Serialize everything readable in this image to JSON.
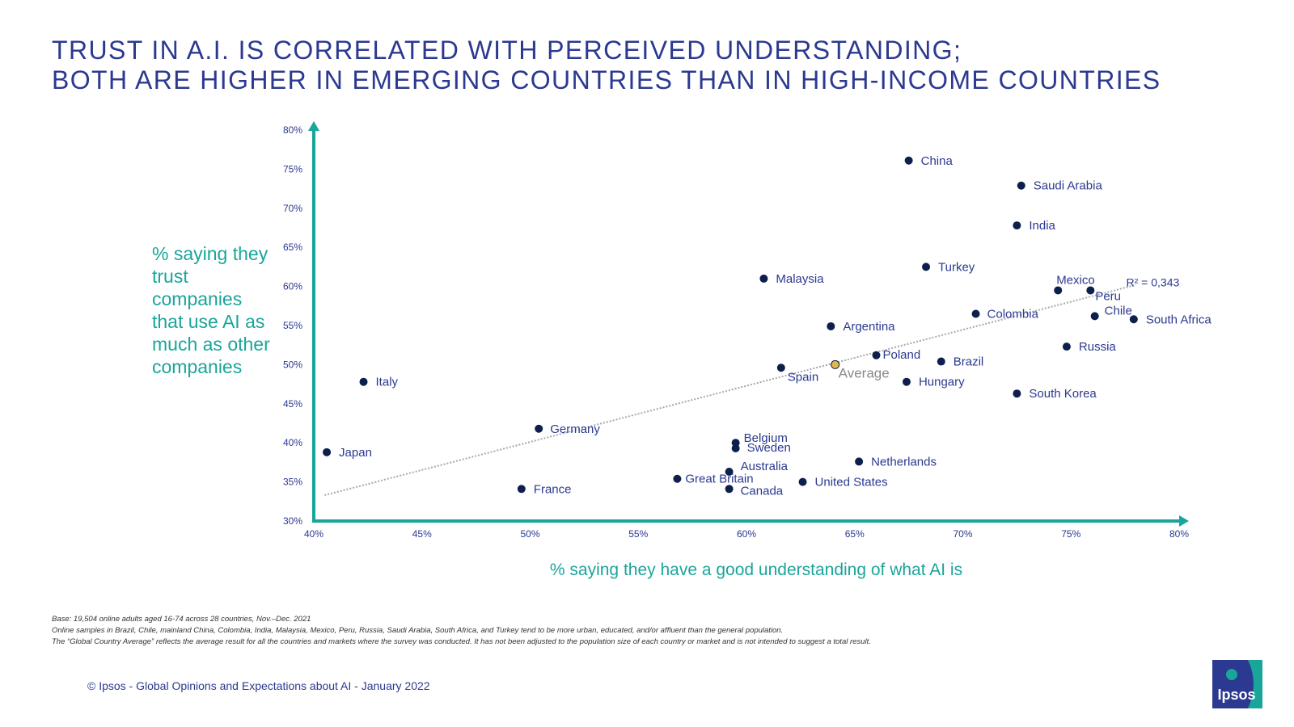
{
  "title": {
    "line1": "TRUST IN A.I. IS CORRELATED WITH PERCEIVED UNDERSTANDING;",
    "line2": "BOTH ARE HIGHER IN EMERGING COUNTRIES THAN IN HIGH-INCOME COUNTRIES"
  },
  "colors": {
    "title": "#2b3990",
    "accent": "#1aa59a",
    "point": "#0d1f4c",
    "average": "#e2b74f",
    "trendline": "#a7a9ac"
  },
  "chart_data": {
    "type": "scatter",
    "xlabel": "% saying they have a good understanding of what AI is",
    "ylabel": "% saying they trust companies that use AI as much as other companies",
    "xlim": [
      40,
      80
    ],
    "ylim": [
      30,
      80
    ],
    "xticks": [
      "40%",
      "45%",
      "50%",
      "55%",
      "60%",
      "65%",
      "70%",
      "75%",
      "80%"
    ],
    "yticks": [
      "30%",
      "35%",
      "40%",
      "45%",
      "50%",
      "55%",
      "60%",
      "65%",
      "70%",
      "75%",
      "80%"
    ],
    "grid": false,
    "trendline": {
      "label": "R² = 0,343",
      "from": [
        40.5,
        33.3
      ],
      "to": [
        78,
        60.2
      ]
    },
    "points": [
      {
        "name": "China",
        "x": 67.5,
        "y": 76.1
      },
      {
        "name": "Saudi Arabia",
        "x": 72.7,
        "y": 72.9
      },
      {
        "name": "India",
        "x": 72.5,
        "y": 67.8
      },
      {
        "name": "Turkey",
        "x": 68.3,
        "y": 62.5
      },
      {
        "name": "Malaysia",
        "x": 60.8,
        "y": 61.0
      },
      {
        "name": "Mexico",
        "x": 74.4,
        "y": 59.5
      },
      {
        "name": "Peru",
        "x": 75.9,
        "y": 59.5
      },
      {
        "name": "Colombia",
        "x": 70.6,
        "y": 56.5
      },
      {
        "name": "Chile",
        "x": 76.1,
        "y": 56.2
      },
      {
        "name": "South Africa",
        "x": 77.9,
        "y": 55.8
      },
      {
        "name": "Argentina",
        "x": 63.9,
        "y": 54.9
      },
      {
        "name": "Russia",
        "x": 74.8,
        "y": 52.3
      },
      {
        "name": "Poland",
        "x": 66.0,
        "y": 51.2
      },
      {
        "name": "Brazil",
        "x": 69.0,
        "y": 50.4
      },
      {
        "name": "Average",
        "x": 64.1,
        "y": 50.0,
        "highlight": true
      },
      {
        "name": "Spain",
        "x": 61.6,
        "y": 49.6
      },
      {
        "name": "Italy",
        "x": 42.3,
        "y": 47.8
      },
      {
        "name": "Hungary",
        "x": 67.4,
        "y": 47.8
      },
      {
        "name": "South Korea",
        "x": 72.5,
        "y": 46.3
      },
      {
        "name": "Germany",
        "x": 50.4,
        "y": 41.8
      },
      {
        "name": "Belgium",
        "x": 59.5,
        "y": 40.0
      },
      {
        "name": "Sweden",
        "x": 59.5,
        "y": 39.3
      },
      {
        "name": "Japan",
        "x": 40.6,
        "y": 38.8
      },
      {
        "name": "Netherlands",
        "x": 65.2,
        "y": 37.6
      },
      {
        "name": "Australia",
        "x": 59.2,
        "y": 36.3
      },
      {
        "name": "Great Britain",
        "x": 56.8,
        "y": 35.4
      },
      {
        "name": "United States",
        "x": 62.6,
        "y": 35.0
      },
      {
        "name": "France",
        "x": 49.6,
        "y": 34.1
      },
      {
        "name": "Canada",
        "x": 59.2,
        "y": 34.1
      }
    ]
  },
  "footnotes": [
    "Base: 19,504 online adults aged 16-74 across 28 countries, Nov.–Dec. 2021",
    "Online samples in Brazil, Chile, mainland China, Colombia, India, Malaysia, Mexico, Peru, Russia, Saudi Arabia, South Africa, and Turkey tend to be more urban, educated, and/or affluent than the general population.",
    "The “Global  Country Average” reflects the average result for all the countries and markets where the survey was conducted. It has not been adjusted to the population size of each country or market and is not intended to suggest a total result."
  ],
  "copyright": "© Ipsos - Global Opinions and Expectations about AI - January 2022",
  "logo": {
    "text": "Ipsos",
    "icon": "ipsos-logo"
  }
}
